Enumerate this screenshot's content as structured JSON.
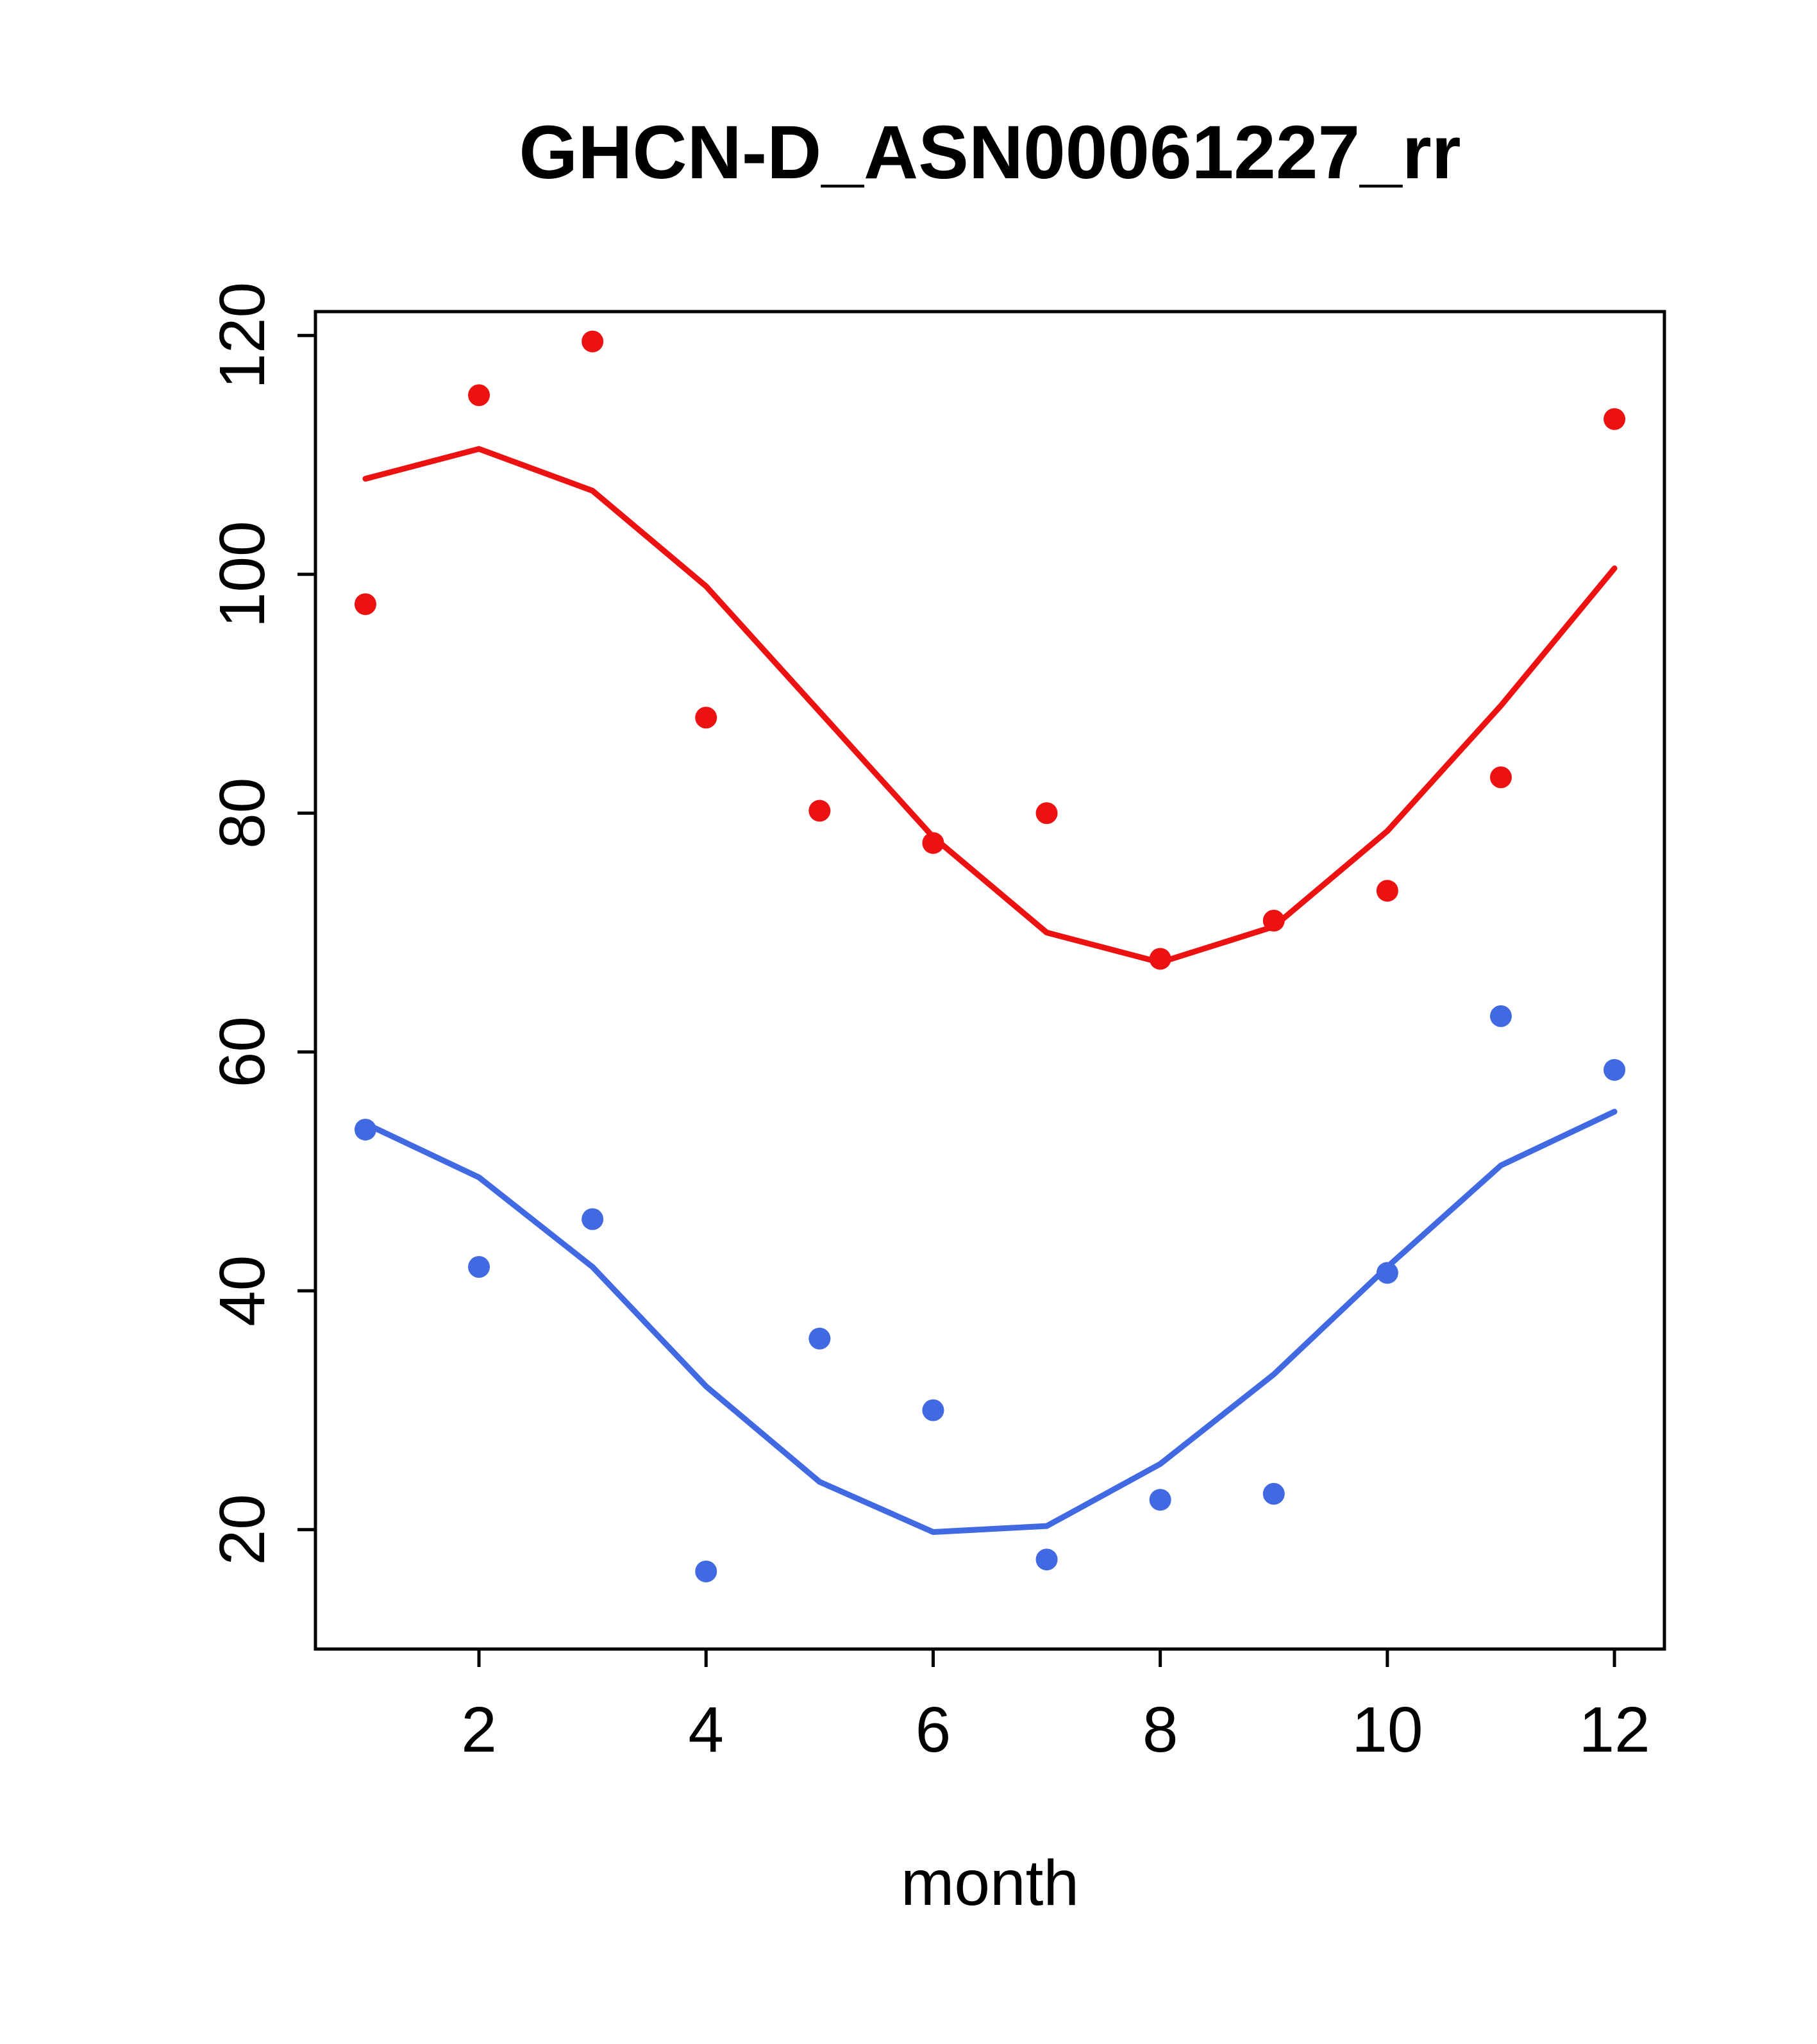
{
  "chart_data": {
    "type": "scatter",
    "title": "GHCN-D_ASN00061227_rr",
    "xlabel": "month",
    "ylabel": "",
    "x": [
      1,
      2,
      3,
      4,
      5,
      6,
      7,
      8,
      9,
      10,
      11,
      12
    ],
    "series": [
      {
        "name": "red-points",
        "kind": "points",
        "color": "#ed1212",
        "values": [
          97.5,
          115,
          119.5,
          88,
          80.2,
          77.5,
          80,
          67.8,
          71,
          73.5,
          83,
          113
        ]
      },
      {
        "name": "red-trend",
        "kind": "line",
        "color": "#ed1212",
        "values": [
          108,
          110.5,
          107,
          99,
          88.5,
          78,
          70,
          67.5,
          70.5,
          78.5,
          89,
          100.5
        ]
      },
      {
        "name": "blue-points",
        "kind": "points",
        "color": "#4169e1",
        "values": [
          53.5,
          42,
          46,
          16.5,
          36,
          30,
          17.5,
          22.5,
          23,
          41.5,
          63,
          58.5
        ]
      },
      {
        "name": "blue-trend",
        "kind": "line",
        "color": "#4169e1",
        "values": [
          54,
          49.5,
          42,
          32,
          24,
          19.8,
          20.3,
          25.5,
          33,
          42,
          50.5,
          55
        ]
      }
    ],
    "xlim": [
      0.56,
      12.44
    ],
    "ylim": [
      10,
      122
    ],
    "xticks": [
      2,
      4,
      6,
      8,
      10,
      12
    ],
    "yticks": [
      20,
      40,
      60,
      80,
      100,
      120
    ],
    "grid": false,
    "legend": "none"
  },
  "colors": {
    "red": "#ed1212",
    "blue": "#4169e1",
    "axis": "#000000",
    "background": "#ffffff"
  }
}
